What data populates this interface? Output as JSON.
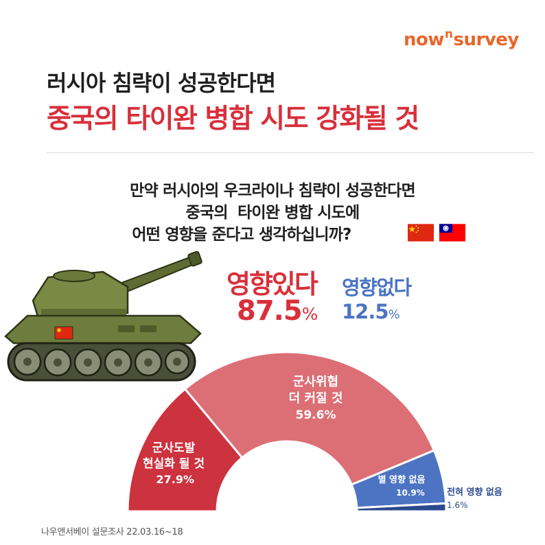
{
  "brand": {
    "pre": "now",
    "sup": "n",
    "post": "survey"
  },
  "title": {
    "line1": "러시아 침략이 성공한다면",
    "line2": "중국의 타이완 병합 시도 강화될 것"
  },
  "question": {
    "line1": "만약 러시아의 우크라이나 침략이 성공한다면",
    "line2": "중국의  타이완 병합 시도에",
    "line3": "어떤 영향을 준다고 생각하십니까?"
  },
  "summary": {
    "yes_label": "영향있다",
    "yes_value": "87.5",
    "yes_unit": "%",
    "no_label": "영향없다",
    "no_value": "12.5",
    "no_unit": "%"
  },
  "icons": [
    "china-flag-icon",
    "taiwan-flag-icon",
    "tank-icon"
  ],
  "colors": {
    "dark_red": "#cd323f",
    "light_red": "#dc6f75",
    "blue": "#4d74c3",
    "navy": "#2b4a8d",
    "brand": "#e8662a"
  },
  "chart_data": {
    "type": "pie",
    "subtype": "half-donut",
    "slices": [
      {
        "label_lines": [
          "군사도발",
          "현실화 될 것"
        ],
        "value": 27.9,
        "value_text": "27.9%",
        "color": "#cd323f"
      },
      {
        "label_lines": [
          "군사위협",
          "더 커질 것"
        ],
        "value": 59.6,
        "value_text": "59.6%",
        "color": "#dc6f75"
      },
      {
        "label_lines": [
          "별 영향 없음"
        ],
        "value": 10.9,
        "value_text": "10.9%",
        "color": "#4d74c3"
      },
      {
        "label_lines": [
          "전혀 영향 없음"
        ],
        "value": 1.6,
        "value_text": "1.6%",
        "color": "#2b4a8d"
      }
    ]
  },
  "source": "나우앤서베이 설문조사 22.03.16~18"
}
